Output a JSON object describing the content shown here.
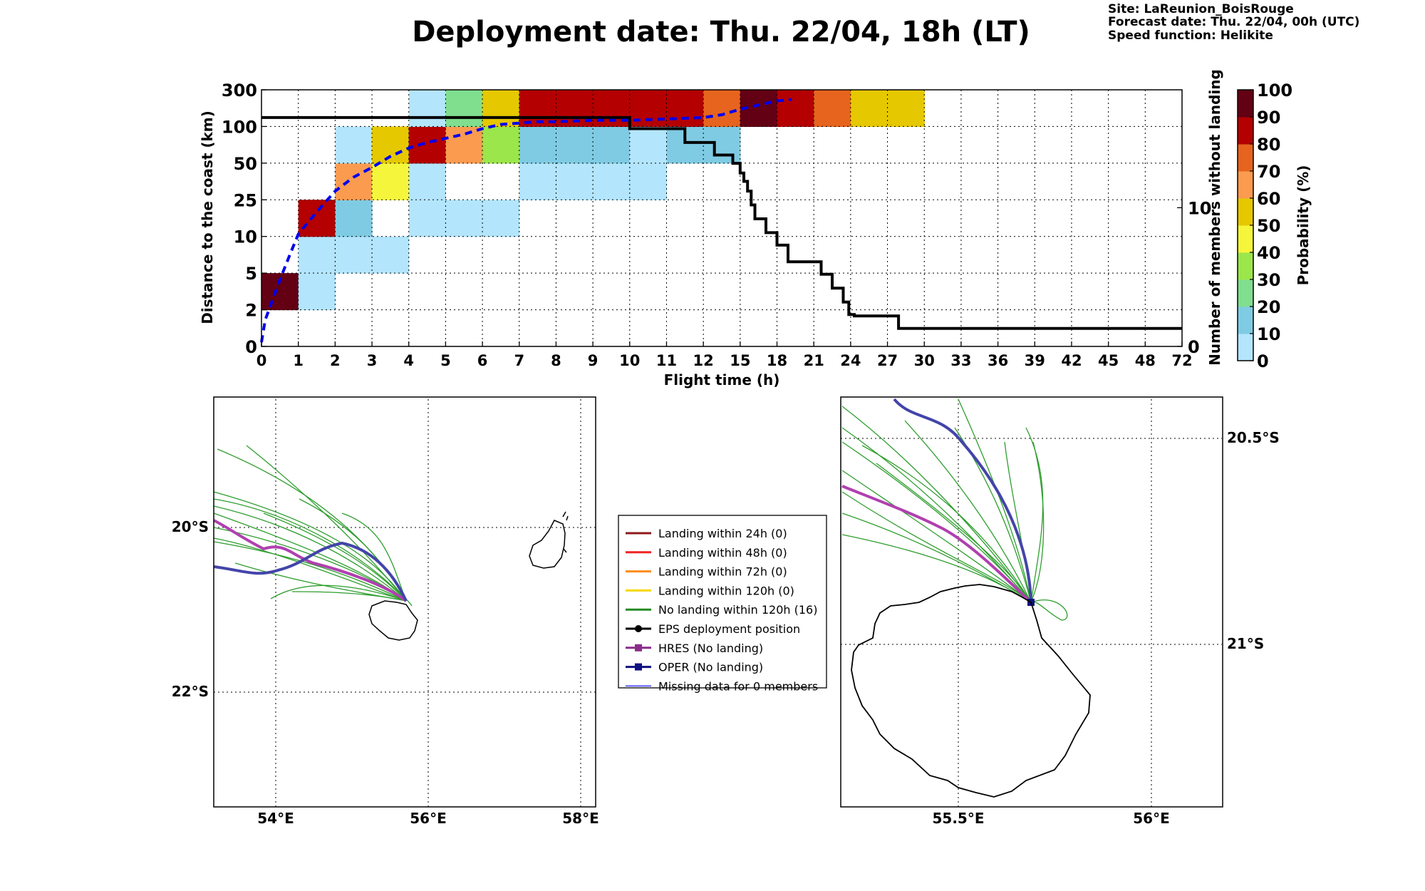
{
  "header": {
    "title": "Deployment date: Thu. 22/04, 18h (LT)",
    "site": "Site: LaReunion_BoisRouge",
    "forecast": "Forecast date: Thu. 22/04, 00h (UTC)",
    "speed": "Speed function: Helikite"
  },
  "chart_data": [
    {
      "type": "heatmap",
      "title": "",
      "xlabel": "Flight time (h)",
      "ylabel": "Distance to the coast (km)",
      "y2label": "Number of members without landing",
      "colorbar_label": "Probability (%)",
      "x_bins": [
        "0",
        "1",
        "2",
        "3",
        "4",
        "5",
        "6",
        "7",
        "8",
        "9",
        "10",
        "11",
        "12",
        "15",
        "18",
        "21",
        "24",
        "27",
        "30",
        "33",
        "36",
        "39",
        "42",
        "45",
        "48",
        "72"
      ],
      "y_bins": [
        "0",
        "2",
        "5",
        "10",
        "25",
        "50",
        "100",
        "300"
      ],
      "y2_ticks": [
        "0",
        "10"
      ],
      "y2_range": [
        0,
        18.5
      ],
      "colorbar_ticks": [
        "0",
        "10",
        "20",
        "30",
        "40",
        "50",
        "60",
        "70",
        "80",
        "90",
        "100"
      ],
      "colorbar_colors": [
        "#b3e5fc",
        "#7fcbe3",
        "#80de8f",
        "#9be64a",
        "#f5f53c",
        "#e6c800",
        "#fa9b50",
        "#e6641e",
        "#b40000",
        "#640014"
      ],
      "cells": [
        {
          "x": 0,
          "y": 1,
          "p": 95
        },
        {
          "x": 1,
          "y": 1,
          "p": 5
        },
        {
          "x": 1,
          "y": 2,
          "p": 5
        },
        {
          "x": 1,
          "y": 3,
          "p": 85
        },
        {
          "x": 2,
          "y": 2,
          "p": 5
        },
        {
          "x": 2,
          "y": 3,
          "p": 15
        },
        {
          "x": 2,
          "y": 4,
          "p": 65
        },
        {
          "x": 2,
          "y": 5,
          "p": 5
        },
        {
          "x": 3,
          "y": 2,
          "p": 5
        },
        {
          "x": 3,
          "y": 4,
          "p": 45
        },
        {
          "x": 3,
          "y": 5,
          "p": 55
        },
        {
          "x": 4,
          "y": 3,
          "p": 5
        },
        {
          "x": 4,
          "y": 4,
          "p": 5
        },
        {
          "x": 4,
          "y": 5,
          "p": 85
        },
        {
          "x": 4,
          "y": 6,
          "p": 5
        },
        {
          "x": 5,
          "y": 3,
          "p": 5
        },
        {
          "x": 5,
          "y": 5,
          "p": 65
        },
        {
          "x": 5,
          "y": 6,
          "p": 25
        },
        {
          "x": 6,
          "y": 3,
          "p": 5
        },
        {
          "x": 6,
          "y": 5,
          "p": 35
        },
        {
          "x": 6,
          "y": 6,
          "p": 55
        },
        {
          "x": 7,
          "y": 4,
          "p": 5
        },
        {
          "x": 7,
          "y": 5,
          "p": 15
        },
        {
          "x": 7,
          "y": 6,
          "p": 85
        },
        {
          "x": 8,
          "y": 4,
          "p": 5
        },
        {
          "x": 8,
          "y": 5,
          "p": 15
        },
        {
          "x": 8,
          "y": 6,
          "p": 85
        },
        {
          "x": 9,
          "y": 4,
          "p": 5
        },
        {
          "x": 9,
          "y": 5,
          "p": 15
        },
        {
          "x": 9,
          "y": 6,
          "p": 85
        },
        {
          "x": 10,
          "y": 4,
          "p": 5
        },
        {
          "x": 10,
          "y": 5,
          "p": 5
        },
        {
          "x": 10,
          "y": 6,
          "p": 85
        },
        {
          "x": 11,
          "y": 5,
          "p": 15
        },
        {
          "x": 11,
          "y": 6,
          "p": 85
        },
        {
          "x": 12,
          "y": 5,
          "p": 15
        },
        {
          "x": 12,
          "y": 6,
          "p": 75
        },
        {
          "x": 13,
          "y": 6,
          "p": 95
        },
        {
          "x": 14,
          "y": 6,
          "p": 85
        },
        {
          "x": 15,
          "y": 6,
          "p": 75
        },
        {
          "x": 16,
          "y": 6,
          "p": 55
        },
        {
          "x": 17,
          "y": 6,
          "p": 55
        }
      ],
      "black_line": {
        "name": "",
        "points": [
          [
            0,
            16.5
          ],
          [
            10,
            16.5
          ],
          [
            10,
            15.7
          ],
          [
            11.5,
            15.7
          ],
          [
            11.5,
            14.7
          ],
          [
            12.3,
            14.7
          ],
          [
            12.3,
            13.8
          ],
          [
            12.8,
            13.8
          ],
          [
            12.8,
            13.2
          ],
          [
            13.0,
            13.2
          ],
          [
            13.0,
            12.5
          ],
          [
            13.1,
            12.5
          ],
          [
            13.1,
            11.9
          ],
          [
            13.2,
            11.9
          ],
          [
            13.2,
            11.2
          ],
          [
            13.3,
            11.2
          ],
          [
            13.3,
            10.2
          ],
          [
            13.4,
            10.2
          ],
          [
            13.4,
            9.2
          ],
          [
            13.7,
            9.2
          ],
          [
            13.7,
            8.2
          ],
          [
            14,
            8.2
          ],
          [
            14,
            7.3
          ],
          [
            14.3,
            7.3
          ],
          [
            14.3,
            6.1
          ],
          [
            15.2,
            6.1
          ],
          [
            15.2,
            5.2
          ],
          [
            15.5,
            5.2
          ],
          [
            15.5,
            4.2
          ],
          [
            15.8,
            4.2
          ],
          [
            15.8,
            3.2
          ],
          [
            15.95,
            3.2
          ],
          [
            15.95,
            2.3
          ],
          [
            16.1,
            2.3
          ],
          [
            16.1,
            2.2
          ],
          [
            17.3,
            2.2
          ],
          [
            17.3,
            1.3
          ],
          [
            25,
            1.3
          ]
        ]
      },
      "blue_dashed_line": {
        "name": "",
        "points": [
          [
            0,
            0.3
          ],
          [
            0.1,
            1.9
          ],
          [
            0.5,
            4.8
          ],
          [
            0.8,
            6.8
          ],
          [
            1.0,
            8.1
          ],
          [
            1.5,
            9.7
          ],
          [
            2.0,
            11.2
          ],
          [
            2.5,
            12.2
          ],
          [
            3.0,
            12.9
          ],
          [
            3.5,
            13.7
          ],
          [
            4.0,
            14.3
          ],
          [
            4.5,
            14.7
          ],
          [
            5.0,
            15.0
          ],
          [
            5.5,
            15.3
          ],
          [
            6.0,
            15.7
          ],
          [
            6.5,
            16.0
          ],
          [
            7.0,
            16.1
          ],
          [
            7.5,
            16.2
          ],
          [
            8.0,
            16.2
          ],
          [
            9.0,
            16.3
          ],
          [
            10.0,
            16.3
          ],
          [
            11.0,
            16.4
          ],
          [
            12.0,
            16.5
          ],
          [
            12.5,
            16.7
          ],
          [
            13.0,
            17.1
          ],
          [
            13.5,
            17.4
          ],
          [
            14.0,
            17.7
          ],
          [
            14.4,
            17.8
          ]
        ]
      }
    }
  ],
  "maps": {
    "left": {
      "x_ticks": [
        "54°E",
        "56°E",
        "58°E"
      ],
      "y_ticks": [
        "20°S",
        "22°S"
      ]
    },
    "right": {
      "x_ticks": [
        "55.5°E",
        "56°E"
      ],
      "y_ticks": [
        "20.5°S",
        "21°S"
      ]
    }
  },
  "legend": {
    "items": [
      {
        "label": "Landing within 24h (0)",
        "color": "#8b1a1a",
        "marker": "none"
      },
      {
        "label": "Landing within 48h (0)",
        "color": "#ee2222",
        "marker": "none"
      },
      {
        "label": "Landing within 72h (0)",
        "color": "#ff8c1a",
        "marker": "none"
      },
      {
        "label": "Landing within 120h (0)",
        "color": "#f5d800",
        "marker": "none"
      },
      {
        "label": "No landing within 120h (16)",
        "color": "#228b22",
        "marker": "none"
      },
      {
        "label": "EPS deployment position",
        "color": "#000000",
        "marker": "circle"
      },
      {
        "label": "HRES (No landing)",
        "color": "#8b2c8b",
        "marker": "square"
      },
      {
        "label": "OPER (No landing)",
        "color": "#101080",
        "marker": "square"
      },
      {
        "label": "Missing data for 0 members",
        "color": "#3333ff",
        "marker": "none"
      }
    ]
  }
}
